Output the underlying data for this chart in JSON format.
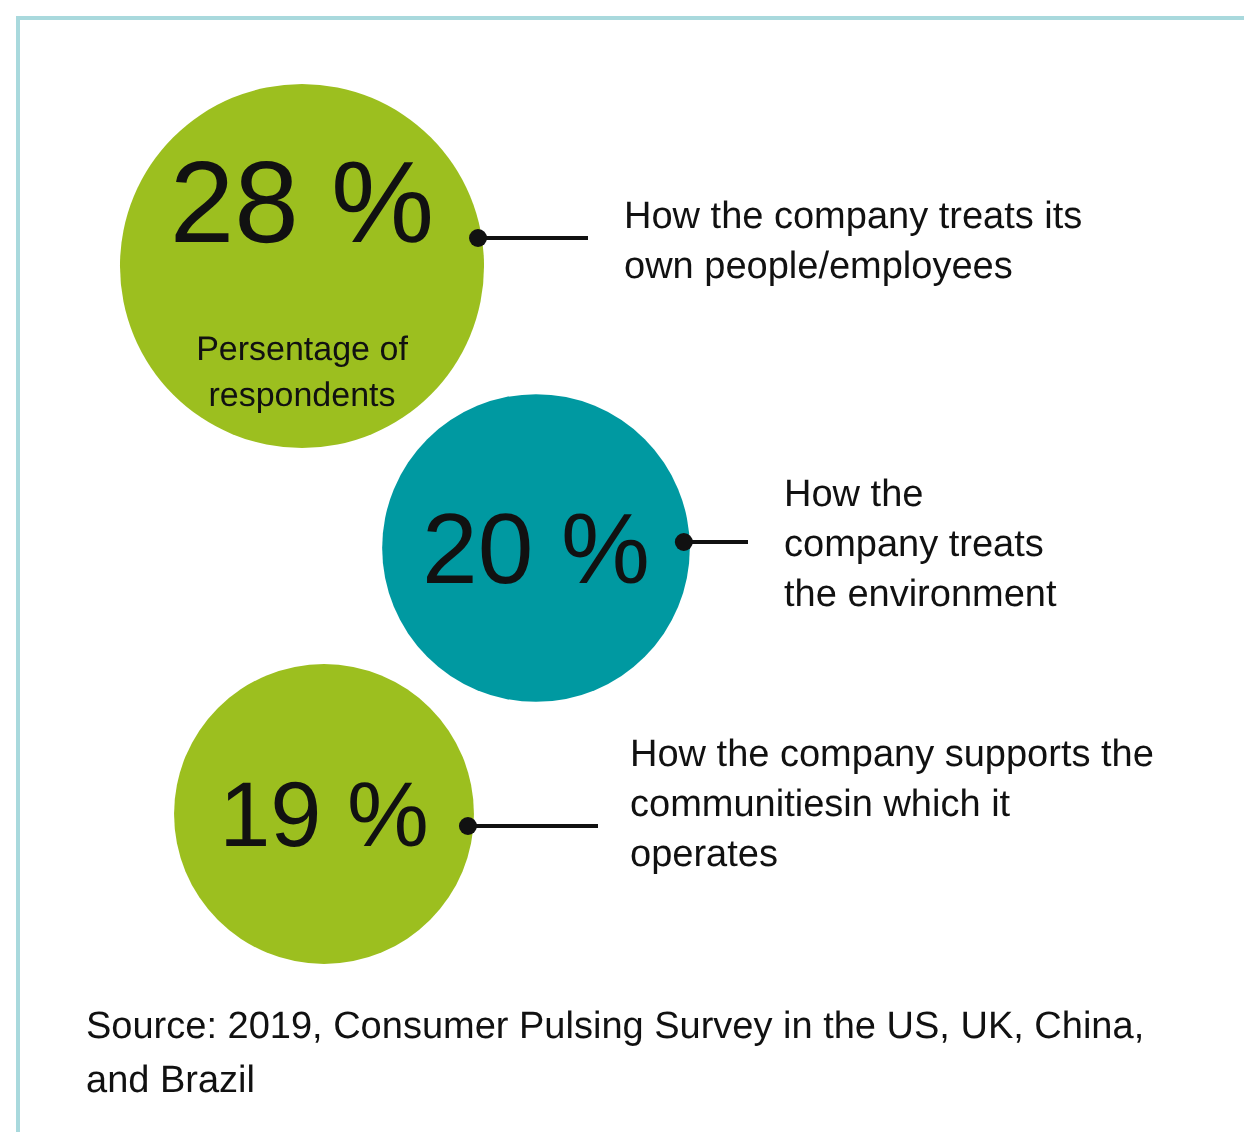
{
  "chart_data": {
    "type": "other",
    "categories": [
      "How the company treats its own people/employees",
      "How the company treats the environment",
      "How the company supports the communitiesin which it operates"
    ],
    "values": [
      28,
      20,
      19
    ],
    "value_labels": [
      "28 %",
      "20 %",
      "19 %"
    ],
    "colors": [
      "#9cbf1f",
      "#0099a1",
      "#9cbf1f"
    ],
    "annotations": [
      "Persentage of respondents",
      "Source: 2019, Consumer Pulsing Survey in the US, UK, China, and Brazil"
    ]
  }
}
